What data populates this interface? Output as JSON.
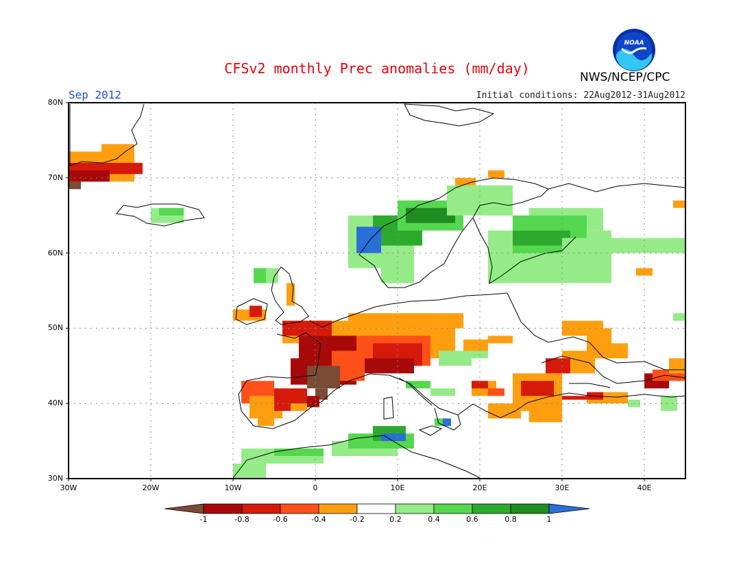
{
  "header": {
    "title": "CFSv2 monthly Prec anomalies (mm/day)",
    "month": "Sep 2012",
    "initial_conditions": "Initial conditions: 22Aug2012-31Aug2012",
    "agency": "NWS/NCEP/CPC",
    "logo_text": "NOAA"
  },
  "axes": {
    "lat_labels": [
      "80N",
      "70N",
      "60N",
      "50N",
      "40N",
      "30N"
    ],
    "lon_labels": [
      "30W",
      "20W",
      "10W",
      "0",
      "10E",
      "20E",
      "30E",
      "40E"
    ],
    "lat_range": [
      30,
      80
    ],
    "lon_range": [
      -30,
      45
    ],
    "grid": "dotted"
  },
  "colorbar": {
    "labels": [
      "-1",
      "-0.8",
      "-0.6",
      "-0.4",
      "-0.2",
      "0.2",
      "0.4",
      "0.6",
      "0.8",
      "1"
    ],
    "colors": [
      "#7a4b35",
      "#a80a0a",
      "#d61a0a",
      "#ff5019",
      "#ff9f0f",
      "#ffffff",
      "#96eb89",
      "#55d84f",
      "#2daa2d",
      "#1f8c1f",
      "#2a6fd8"
    ]
  },
  "map_data": {
    "cell_size_deg": 1.5,
    "categories": {
      "Bd": "below -1",
      "Dr": "-1 to -0.8",
      "Rd": "-0.8 to -0.6",
      "Or": "-0.6 to -0.4",
      "Og": "-0.4 to -0.2",
      "Lg": "0.2 to 0.4",
      "Mg": "0.4 to 0.6",
      "Gn": "0.6 to 0.8",
      "Dg": "0.8 to 1",
      "Bl": "above 1"
    },
    "regions": [
      {
        "c": "Og",
        "lon": [
          -30,
          -22
        ],
        "lat": [
          69.5,
          73.5
        ]
      },
      {
        "c": "Rd",
        "lon": [
          -30,
          -21
        ],
        "lat": [
          70.5,
          72
        ]
      },
      {
        "c": "Dr",
        "lon": [
          -30,
          -25
        ],
        "lat": [
          69.5,
          71
        ]
      },
      {
        "c": "Bd",
        "lon": [
          -30,
          -28.5
        ],
        "lat": [
          68.5,
          69.5
        ]
      },
      {
        "c": "Og",
        "lon": [
          -26,
          -22
        ],
        "lat": [
          73,
          74.5
        ]
      },
      {
        "c": "Lg",
        "lon": [
          -20,
          -16
        ],
        "lat": [
          64,
          66
        ]
      },
      {
        "c": "Mg",
        "lon": [
          -19,
          -16
        ],
        "lat": [
          65,
          66
        ]
      },
      {
        "c": "Lg",
        "lon": [
          4,
          12
        ],
        "lat": [
          58,
          65
        ]
      },
      {
        "c": "Gn",
        "lon": [
          7,
          13
        ],
        "lat": [
          61,
          65
        ]
      },
      {
        "c": "Mg",
        "lon": [
          10,
          18
        ],
        "lat": [
          63,
          67
        ]
      },
      {
        "c": "Dg",
        "lon": [
          11,
          17
        ],
        "lat": [
          64,
          66
        ]
      },
      {
        "c": "Bl",
        "lon": [
          5,
          8
        ],
        "lat": [
          60,
          63.5
        ]
      },
      {
        "c": "Lg",
        "lon": [
          16,
          24
        ],
        "lat": [
          65,
          69
        ]
      },
      {
        "c": "Og",
        "lon": [
          17,
          19.5
        ],
        "lat": [
          69,
          70
        ]
      },
      {
        "c": "Og",
        "lon": [
          21,
          23
        ],
        "lat": [
          70,
          71
        ]
      },
      {
        "c": "Lg",
        "lon": [
          8,
          12
        ],
        "lat": [
          56,
          59
        ]
      },
      {
        "c": "Lg",
        "lon": [
          21,
          36
        ],
        "lat": [
          56,
          63
        ]
      },
      {
        "c": "Lg",
        "lon": [
          26,
          35
        ],
        "lat": [
          63,
          66
        ]
      },
      {
        "c": "Mg",
        "lon": [
          24,
          33
        ],
        "lat": [
          60,
          65
        ]
      },
      {
        "c": "Gn",
        "lon": [
          24,
          31
        ],
        "lat": [
          61,
          63
        ]
      },
      {
        "c": "Lg",
        "lon": [
          30,
          38
        ],
        "lat": [
          60,
          62
        ]
      },
      {
        "c": "Lg",
        "lon": [
          37,
          45
        ],
        "lat": [
          60,
          62
        ]
      },
      {
        "c": "Og",
        "lon": [
          43.5,
          45
        ],
        "lat": [
          66,
          67
        ]
      },
      {
        "c": "Og",
        "lon": [
          39,
          41
        ],
        "lat": [
          57,
          58
        ]
      },
      {
        "c": "Mg",
        "lon": [
          -7.5,
          -5.5
        ],
        "lat": [
          56,
          58
        ]
      },
      {
        "c": "Lg",
        "lon": [
          -6,
          -4.5
        ],
        "lat": [
          56,
          58
        ]
      },
      {
        "c": "Og",
        "lon": [
          -3.5,
          -2.5
        ],
        "lat": [
          53,
          56
        ]
      },
      {
        "c": "Og",
        "lon": [
          -10,
          -6
        ],
        "lat": [
          51,
          52.5
        ]
      },
      {
        "c": "Rd",
        "lon": [
          -8,
          -6.5
        ],
        "lat": [
          51.5,
          53
        ]
      },
      {
        "c": "Og",
        "lon": [
          -4,
          4
        ],
        "lat": [
          48,
          51
        ]
      },
      {
        "c": "Rd",
        "lon": [
          -4,
          2
        ],
        "lat": [
          49,
          51
        ]
      },
      {
        "c": "Og",
        "lon": [
          4,
          17
        ],
        "lat": [
          46,
          52
        ]
      },
      {
        "c": "Og",
        "lon": [
          15,
          18
        ],
        "lat": [
          50,
          52
        ]
      },
      {
        "c": "Or",
        "lon": [
          2,
          14
        ],
        "lat": [
          45,
          49
        ]
      },
      {
        "c": "Rd",
        "lon": [
          7,
          13
        ],
        "lat": [
          45,
          48
        ]
      },
      {
        "c": "Dr",
        "lon": [
          -2,
          5
        ],
        "lat": [
          45,
          49
        ]
      },
      {
        "c": "Dr",
        "lon": [
          -3,
          5
        ],
        "lat": [
          42.5,
          46
        ]
      },
      {
        "c": "Or",
        "lon": [
          2,
          6
        ],
        "lat": [
          43,
          47
        ]
      },
      {
        "c": "Bd",
        "lon": [
          -1,
          3
        ],
        "lat": [
          42,
          45
        ]
      },
      {
        "c": "Bd",
        "lon": [
          0,
          1.5
        ],
        "lat": [
          40.5,
          42
        ]
      },
      {
        "c": "Dr",
        "lon": [
          6,
          12
        ],
        "lat": [
          44,
          46
        ]
      },
      {
        "c": "Or",
        "lon": [
          -9,
          -5
        ],
        "lat": [
          40,
          43
        ]
      },
      {
        "c": "Og",
        "lon": [
          -8,
          -4
        ],
        "lat": [
          38,
          41
        ]
      },
      {
        "c": "Rd",
        "lon": [
          -5,
          -1
        ],
        "lat": [
          39,
          42
        ]
      },
      {
        "c": "Og",
        "lon": [
          -7,
          -5
        ],
        "lat": [
          37,
          38.5
        ]
      },
      {
        "c": "Og",
        "lon": [
          -3,
          -1
        ],
        "lat": [
          39,
          40
        ]
      },
      {
        "c": "Dr",
        "lon": [
          -1,
          0.5
        ],
        "lat": [
          39.5,
          41
        ]
      },
      {
        "c": "Mg",
        "lon": [
          11,
          14
        ],
        "lat": [
          42,
          43
        ]
      },
      {
        "c": "Lg",
        "lon": [
          14,
          17
        ],
        "lat": [
          41,
          42
        ]
      },
      {
        "c": "Lg",
        "lon": [
          15,
          19
        ],
        "lat": [
          45,
          47
        ]
      },
      {
        "c": "Lg",
        "lon": [
          18,
          21
        ],
        "lat": [
          46,
          48
        ]
      },
      {
        "c": "Mg",
        "lon": [
          14.5,
          15.5
        ],
        "lat": [
          37,
          38
        ]
      },
      {
        "c": "Bl",
        "lon": [
          15.5,
          16.5
        ],
        "lat": [
          37,
          38
        ]
      },
      {
        "c": "Og",
        "lon": [
          19,
          22
        ],
        "lat": [
          41,
          43
        ]
      },
      {
        "c": "Rd",
        "lon": [
          19,
          21
        ],
        "lat": [
          42,
          43
        ]
      },
      {
        "c": "Or",
        "lon": [
          21,
          23
        ],
        "lat": [
          41,
          42
        ]
      },
      {
        "c": "Og",
        "lon": [
          21,
          25
        ],
        "lat": [
          38,
          40
        ]
      },
      {
        "c": "Og",
        "lon": [
          24,
          30
        ],
        "lat": [
          39,
          44
        ]
      },
      {
        "c": "Rd",
        "lon": [
          25,
          29
        ],
        "lat": [
          41,
          43
        ]
      },
      {
        "c": "Og",
        "lon": [
          26,
          30
        ],
        "lat": [
          37.5,
          40
        ]
      },
      {
        "c": "Og",
        "lon": [
          30,
          34
        ],
        "lat": [
          44,
          47
        ]
      },
      {
        "c": "Rd",
        "lon": [
          28,
          31
        ],
        "lat": [
          44,
          46
        ]
      },
      {
        "c": "Og",
        "lon": [
          30,
          35
        ],
        "lat": [
          49,
          51
        ]
      },
      {
        "c": "Og",
        "lon": [
          33,
          36
        ],
        "lat": [
          46,
          50
        ]
      },
      {
        "c": "Og",
        "lon": [
          35,
          38
        ],
        "lat": [
          46,
          48
        ]
      },
      {
        "c": "Og",
        "lon": [
          18,
          21
        ],
        "lat": [
          47,
          48.5
        ]
      },
      {
        "c": "Og",
        "lon": [
          21,
          24
        ],
        "lat": [
          48,
          49
        ]
      },
      {
        "c": "Rd",
        "lon": [
          30,
          37
        ],
        "lat": [
          40.5,
          41
        ]
      },
      {
        "c": "Og",
        "lon": [
          33,
          38
        ],
        "lat": [
          40,
          41.5
        ]
      },
      {
        "c": "Rd",
        "lon": [
          33,
          35
        ],
        "lat": [
          40.5,
          41.5
        ]
      },
      {
        "c": "Dr",
        "lon": [
          40,
          43
        ],
        "lat": [
          42,
          44
        ]
      },
      {
        "c": "Or",
        "lon": [
          41,
          45
        ],
        "lat": [
          43,
          44.5
        ]
      },
      {
        "c": "Og",
        "lon": [
          43,
          45
        ],
        "lat": [
          44,
          46
        ]
      },
      {
        "c": "Lg",
        "lon": [
          42,
          44
        ],
        "lat": [
          39,
          41
        ]
      },
      {
        "c": "Lg",
        "lon": [
          38,
          39.5
        ],
        "lat": [
          39.5,
          40.5
        ]
      },
      {
        "c": "Lg",
        "lon": [
          43.5,
          45
        ],
        "lat": [
          51,
          52
        ]
      },
      {
        "c": "Lg",
        "lon": [
          -9,
          1
        ],
        "lat": [
          32,
          34
        ]
      },
      {
        "c": "Mg",
        "lon": [
          -5,
          1
        ],
        "lat": [
          33,
          34
        ]
      },
      {
        "c": "Lg",
        "lon": [
          -10,
          -6
        ],
        "lat": [
          30,
          32
        ]
      },
      {
        "c": "Lg",
        "lon": [
          2,
          10
        ],
        "lat": [
          33,
          35
        ]
      },
      {
        "c": "Mg",
        "lon": [
          4,
          12
        ],
        "lat": [
          34,
          36
        ]
      },
      {
        "c": "Gn",
        "lon": [
          7,
          11
        ],
        "lat": [
          35,
          37
        ]
      },
      {
        "c": "Bl",
        "lon": [
          8,
          11
        ],
        "lat": [
          35,
          36
        ]
      }
    ]
  }
}
